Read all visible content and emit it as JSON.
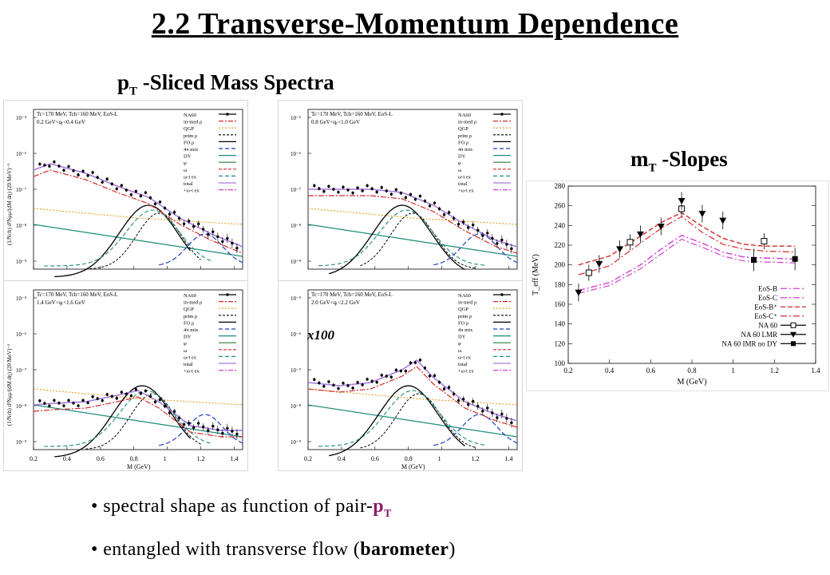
{
  "title": "2.2 Transverse-Momentum Dependence",
  "left_heading": {
    "main": "p",
    "sub": "T",
    "rest": " -Sliced Mass Spectra"
  },
  "right_heading": {
    "main": "m",
    "sub": "T",
    "rest": " -Slopes"
  },
  "annotation": "x100",
  "spectra": {
    "params": "Tₙ=170 MeV, Tᶜʰ=160 MeV, EoS-L",
    "params_text": "Tc=170 MeV, Tch=160 MeV, EoS-L",
    "ylabel": "(1/Nch) d²Nμμ/(dM dη) (20 MeV)⁻¹",
    "xlabel": "M (GeV)",
    "xticks": [
      "0.2",
      "0.4",
      "0.6",
      "0.8",
      "1",
      "1.2",
      "1.4"
    ],
    "yticks": [
      "10⁻⁵",
      "10⁻⁶",
      "10⁻⁷",
      "10⁻⁸",
      "10⁻⁹"
    ],
    "legend": [
      "NA60",
      "in-med ρ",
      "QGP",
      "prim ρ",
      "FO ρ",
      "4π mix",
      "DY",
      "φ",
      "ω",
      "ω-t ex",
      "total",
      "+ω-t ex"
    ],
    "panels": [
      {
        "qt": "0.2 GeV<qₜ<0.4 GeV"
      },
      {
        "qt": "0.8 GeV<qₜ<1.0 GeV"
      },
      {
        "qt": "1.4 GeV<qₜ<1.6 GeV"
      },
      {
        "qt": "2.0 GeV<qₜ<2.2 GeV"
      }
    ]
  },
  "slopes": {
    "ylabel": "T_eff (MeV)",
    "xlabel": "M (GeV)",
    "xticks": [
      "0.2",
      "0.4",
      "0.6",
      "0.8",
      "1",
      "1.2",
      "1.4"
    ],
    "yticks": [
      "280",
      "260",
      "240",
      "220",
      "200",
      "180",
      "160",
      "140",
      "120",
      "100"
    ],
    "legend": [
      "EoS-B",
      "EoS-C",
      "EoS-B⁺",
      "EoS-C⁺",
      "NA 60",
      "NA 60 LMR",
      "NA 60 IMR no DY"
    ]
  },
  "chart_data": [
    {
      "type": "line",
      "title": "",
      "xlabel": "M (GeV)",
      "ylabel": "T_eff (MeV)",
      "xlim": [
        0.2,
        1.4
      ],
      "ylim": [
        100,
        280
      ],
      "series": [
        {
          "name": "EoS-B",
          "x": [
            0.25,
            0.4,
            0.55,
            0.65,
            0.75,
            0.85,
            0.95,
            1.05,
            1.15,
            1.3
          ],
          "y": [
            174,
            182,
            200,
            216,
            230,
            222,
            213,
            208,
            207,
            206
          ]
        },
        {
          "name": "EoS-C",
          "x": [
            0.25,
            0.4,
            0.55,
            0.65,
            0.75,
            0.85,
            0.95,
            1.05,
            1.15,
            1.3
          ],
          "y": [
            171,
            179,
            196,
            211,
            226,
            218,
            209,
            204,
            203,
            202
          ]
        },
        {
          "name": "EoS-B⁺",
          "x": [
            0.25,
            0.4,
            0.55,
            0.65,
            0.75,
            0.85,
            0.95,
            1.05,
            1.15,
            1.3
          ],
          "y": [
            200,
            209,
            229,
            243,
            253,
            239,
            227,
            221,
            219,
            219
          ]
        },
        {
          "name": "EoS-C⁺",
          "x": [
            0.25,
            0.4,
            0.55,
            0.65,
            0.75,
            0.85,
            0.95,
            1.05,
            1.15,
            1.3
          ],
          "y": [
            190,
            199,
            222,
            237,
            249,
            233,
            221,
            216,
            214,
            213
          ]
        },
        {
          "name": "NA 60",
          "x": [
            0.3,
            0.5,
            0.75,
            1.15
          ],
          "y": [
            192,
            223,
            257,
            224
          ]
        },
        {
          "name": "NA 60 LMR",
          "x": [
            0.25,
            0.35,
            0.45,
            0.55,
            0.65,
            0.75,
            0.85,
            0.95
          ],
          "y": [
            172,
            201,
            216,
            231,
            239,
            265,
            252,
            245
          ]
        },
        {
          "name": "NA 60 IMR no DY",
          "x": [
            1.1,
            1.3
          ],
          "y": [
            205,
            206
          ]
        }
      ]
    }
  ],
  "bullets": [
    {
      "text": "spectral shape as function of pair-",
      "pt": "p",
      "pt_sub": "T"
    },
    {
      "pre": "entangled with transverse flow (",
      "bold": "barometer",
      "post": ")"
    }
  ],
  "colors": {
    "in_med_rho": "#d42a2a",
    "qgp": "#e69a1c",
    "prim_rho": "#000000",
    "fo_rho": "#000000",
    "four_pi": "#1f3fbf",
    "dy": "#1c8c7a",
    "phi": "#2e7d32",
    "omega": "#d42a2a",
    "omega_t_ex": "#1c8c7a",
    "total": "#a678e0",
    "plus_omega": "#d040d0",
    "eos_b": "#d040d0",
    "eos_bplus": "#d42a2a"
  }
}
